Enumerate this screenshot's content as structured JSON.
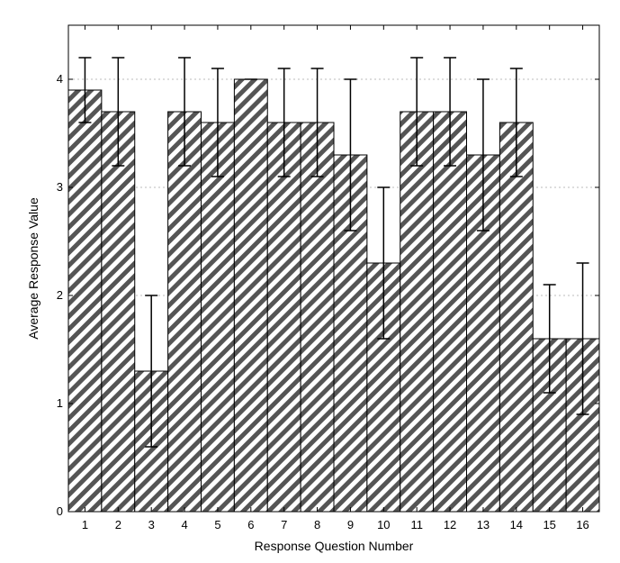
{
  "chart_data": {
    "type": "bar",
    "title": "",
    "xlabel": "Response Question Number",
    "ylabel": "Average Response Value",
    "categories": [
      "1",
      "2",
      "3",
      "4",
      "5",
      "6",
      "7",
      "8",
      "9",
      "10",
      "11",
      "12",
      "13",
      "14",
      "15",
      "16"
    ],
    "values": [
      3.9,
      3.7,
      1.3,
      3.7,
      3.6,
      4.0,
      3.6,
      3.6,
      3.3,
      2.3,
      3.7,
      3.7,
      3.3,
      3.6,
      1.6,
      1.6
    ],
    "error_low": [
      3.6,
      3.2,
      0.6,
      3.2,
      3.1,
      4.0,
      3.1,
      3.1,
      2.6,
      1.6,
      3.2,
      3.2,
      2.6,
      3.1,
      1.1,
      0.9
    ],
    "error_high": [
      4.2,
      4.2,
      2.0,
      4.2,
      4.1,
      4.0,
      4.1,
      4.1,
      4.0,
      3.0,
      4.2,
      4.2,
      4.0,
      4.1,
      2.1,
      2.3
    ],
    "ylim": [
      0,
      4.5
    ],
    "yticks": [
      "0",
      "1",
      "2",
      "3",
      "4"
    ],
    "grid": true,
    "bar_fill": "diagonal-hatch",
    "colors": {
      "hatch": "#555555",
      "edge": "#000000",
      "grid": "#bbbbbb",
      "background": "#ffffff"
    }
  }
}
